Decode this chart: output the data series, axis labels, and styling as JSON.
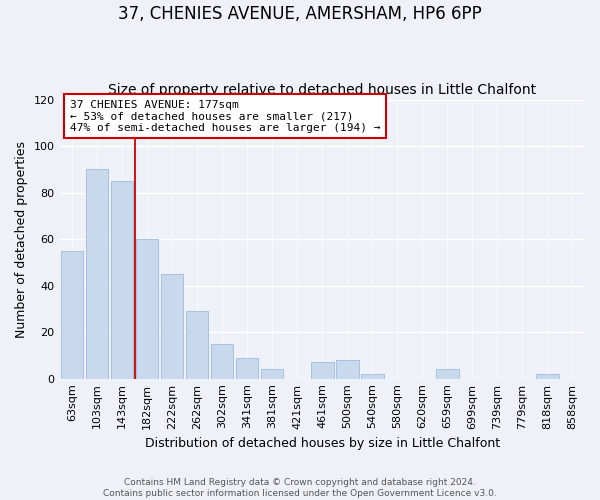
{
  "title": "37, CHENIES AVENUE, AMERSHAM, HP6 6PP",
  "subtitle": "Size of property relative to detached houses in Little Chalfont",
  "xlabel": "Distribution of detached houses by size in Little Chalfont",
  "ylabel": "Number of detached properties",
  "bar_labels": [
    "63sqm",
    "103sqm",
    "143sqm",
    "182sqm",
    "222sqm",
    "262sqm",
    "302sqm",
    "341sqm",
    "381sqm",
    "421sqm",
    "461sqm",
    "500sqm",
    "540sqm",
    "580sqm",
    "620sqm",
    "659sqm",
    "699sqm",
    "739sqm",
    "779sqm",
    "818sqm",
    "858sqm"
  ],
  "bar_heights": [
    55,
    90,
    85,
    60,
    45,
    29,
    15,
    9,
    4,
    0,
    7,
    8,
    2,
    0,
    0,
    4,
    0,
    0,
    0,
    2,
    0
  ],
  "bar_color": "#c8d9ee",
  "bar_edge_color": "#a8c0e0",
  "annotation_title": "37 CHENIES AVENUE: 177sqm",
  "annotation_line1": "← 53% of detached houses are smaller (217)",
  "annotation_line2": "47% of semi-detached houses are larger (194) →",
  "annotation_box_facecolor": "#ffffff",
  "annotation_box_edgecolor": "#cc0000",
  "property_line_color": "#cc0000",
  "ylim": [
    0,
    120
  ],
  "yticks": [
    0,
    20,
    40,
    60,
    80,
    100,
    120
  ],
  "footer1": "Contains HM Land Registry data © Crown copyright and database right 2024.",
  "footer2": "Contains public sector information licensed under the Open Government Licence v3.0.",
  "background_color": "#eef2f8",
  "grid_color": "#ffffff",
  "title_fontsize": 12,
  "subtitle_fontsize": 10,
  "ylabel_fontsize": 9,
  "xlabel_fontsize": 9,
  "tick_fontsize": 8,
  "annot_fontsize": 8,
  "footer_fontsize": 6.5
}
